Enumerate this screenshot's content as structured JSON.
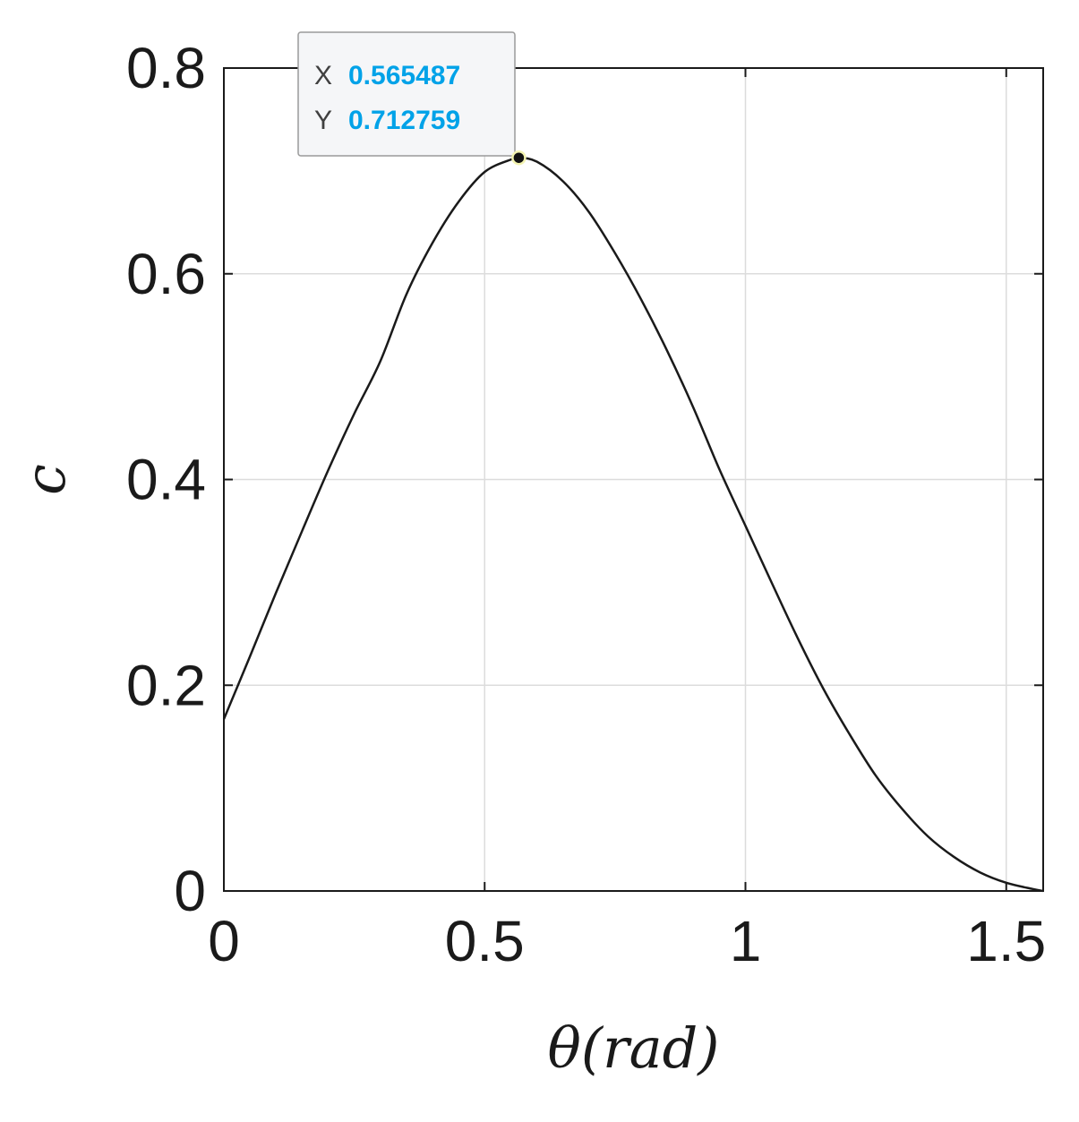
{
  "chart_data": {
    "type": "line",
    "xlabel": "θ(rad)",
    "ylabel": "c",
    "xlim": [
      0,
      1.5708
    ],
    "ylim": [
      0,
      0.8
    ],
    "x_ticks": [
      0,
      0.5,
      1,
      1.5
    ],
    "x_tick_labels": [
      "0",
      "0.5",
      "1",
      "1.5"
    ],
    "y_ticks": [
      0,
      0.2,
      0.4,
      0.6,
      0.8
    ],
    "y_tick_labels": [
      "0",
      "0.2",
      "0.4",
      "0.6",
      "0.8"
    ],
    "grid": true,
    "series": [
      {
        "x": [
          0,
          0.05,
          0.1,
          0.15,
          0.2,
          0.25,
          0.3,
          0.35,
          0.4,
          0.45,
          0.5,
          0.55,
          0.565487,
          0.6,
          0.65,
          0.7,
          0.75,
          0.8,
          0.85,
          0.9,
          0.95,
          1.0,
          1.05,
          1.1,
          1.15,
          1.2,
          1.25,
          1.3,
          1.35,
          1.4,
          1.45,
          1.5,
          1.55,
          1.5708
        ],
        "y": [
          0.167,
          0.228,
          0.29,
          0.35,
          0.409,
          0.464,
          0.515,
          0.58,
          0.63,
          0.67,
          0.699,
          0.711,
          0.712759,
          0.709,
          0.69,
          0.66,
          0.62,
          0.575,
          0.525,
          0.47,
          0.41,
          0.355,
          0.3,
          0.246,
          0.196,
          0.152,
          0.112,
          0.08,
          0.053,
          0.033,
          0.018,
          0.008,
          0.002,
          0.0
        ],
        "color": "#1a1a1a"
      }
    ],
    "datatip": {
      "x_key": "X",
      "y_key": "Y",
      "x": 0.565487,
      "y": 0.712759,
      "x_text": "0.565487",
      "y_text": "0.712759",
      "value_color": "#00a2e8",
      "marker_color": "#111111"
    }
  }
}
